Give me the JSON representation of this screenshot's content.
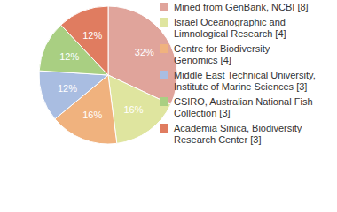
{
  "chart_data": {
    "type": "pie",
    "categories": [
      "Mined from GenBank, NCBI [8]",
      "Israel Oceanographic and Limnological Research [4]",
      "Centre for Biodiversity Genomics [4]",
      "Middle East Technical University, Institute of Marine Sciences [3]",
      "CSIRO, Australian National Fish Collection [3]",
      "Academia Sinica, Biodiversity Research Center [3]"
    ],
    "values": [
      32,
      16,
      16,
      12,
      12,
      12
    ],
    "value_labels": [
      "32%",
      "16%",
      "16%",
      "12%",
      "12%",
      "12%"
    ],
    "colors": [
      "#e0a49b",
      "#dfe59f",
      "#f0b27e",
      "#a9bde1",
      "#a9cf82",
      "#e07c60"
    ],
    "data_labels": true,
    "legend": "right"
  }
}
